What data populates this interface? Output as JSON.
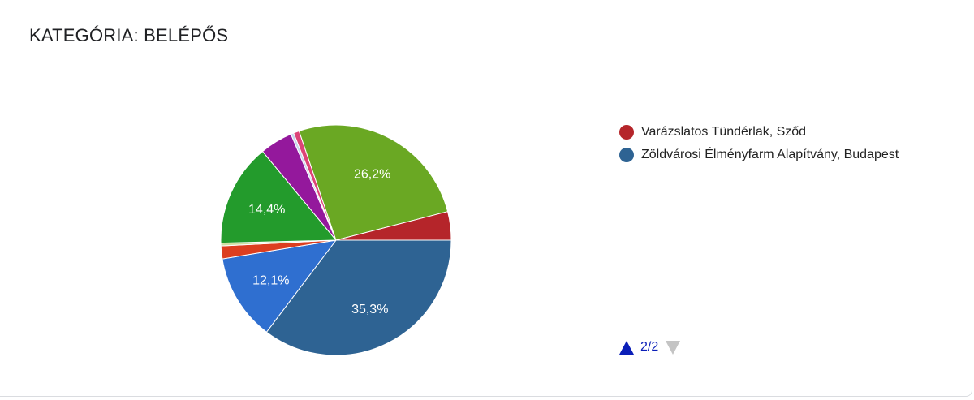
{
  "header": {
    "title": "KATEGÓRIA: BELÉPŐS"
  },
  "chart_data": {
    "type": "pie",
    "slices": [
      {
        "value": 35.3,
        "label": "35,3%",
        "color": "#2e6393"
      },
      {
        "value": 12.1,
        "label": "12,1%",
        "color": "#2f6fd0"
      },
      {
        "value": 1.8,
        "label": "",
        "color": "#dc3e1f"
      },
      {
        "value": 0.4,
        "label": "",
        "color": "#cfe0a3"
      },
      {
        "value": 14.4,
        "label": "14,4%",
        "color": "#239b2c"
      },
      {
        "value": 4.6,
        "label": "",
        "color": "#94189c"
      },
      {
        "value": 0.4,
        "label": "",
        "color": "#c7d6ec"
      },
      {
        "value": 0.8,
        "label": "",
        "color": "#dd4477"
      },
      {
        "value": 26.2,
        "label": "26,2%",
        "color": "#6aa823"
      },
      {
        "value": 4.0,
        "label": "",
        "color": "#b5252a"
      }
    ]
  },
  "legend": {
    "items": [
      {
        "label": "Varázslatos Tündérlak, Sződ",
        "color": "#b5252a"
      },
      {
        "label": "Zöldvárosi Élményfarm Alapítvány, Budapest",
        "color": "#2e6393"
      }
    ]
  },
  "pager": {
    "text": "2/2",
    "up_color": "#0b1fb8",
    "down_color": "#c4c4c4"
  }
}
